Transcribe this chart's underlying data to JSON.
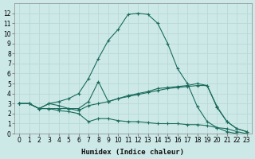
{
  "xlabel": "Humidex (Indice chaleur)",
  "xlim": [
    -0.5,
    23.5
  ],
  "ylim": [
    0,
    13
  ],
  "xticks": [
    0,
    1,
    2,
    3,
    4,
    5,
    6,
    7,
    8,
    9,
    10,
    11,
    12,
    13,
    14,
    15,
    16,
    17,
    18,
    19,
    20,
    21,
    22,
    23
  ],
  "yticks": [
    0,
    1,
    2,
    3,
    4,
    5,
    6,
    7,
    8,
    9,
    10,
    11,
    12
  ],
  "bg_color": "#cce9e8",
  "line_color": "#1a6b5a",
  "grid_color": "#b8d8d6",
  "lines": [
    {
      "x": [
        0,
        1,
        2,
        3,
        4,
        5,
        6,
        7,
        8,
        9,
        10,
        11,
        12,
        13,
        14,
        15,
        16,
        17,
        18,
        19,
        20,
        21,
        22,
        23
      ],
      "y": [
        3.0,
        3.0,
        2.5,
        3.0,
        3.2,
        3.5,
        4.0,
        5.5,
        7.5,
        9.3,
        10.4,
        11.9,
        12.0,
        11.9,
        11.0,
        9.0,
        6.5,
        5.0,
        2.7,
        1.2,
        0.6,
        0.2,
        0.0,
        null
      ]
    },
    {
      "x": [
        0,
        1,
        2,
        3,
        4,
        5,
        6,
        7,
        8,
        9,
        10,
        11,
        12,
        13,
        14,
        15,
        16,
        17,
        18,
        19,
        20,
        21,
        22,
        23
      ],
      "y": [
        3.0,
        3.0,
        2.5,
        3.0,
        2.8,
        2.5,
        2.5,
        3.2,
        5.2,
        3.2,
        3.5,
        3.8,
        4.0,
        4.2,
        4.5,
        4.6,
        4.7,
        4.8,
        5.0,
        4.8,
        2.6,
        1.2,
        0.5,
        0.2
      ]
    },
    {
      "x": [
        0,
        1,
        2,
        3,
        4,
        5,
        6,
        7,
        8,
        9,
        10,
        11,
        12,
        13,
        14,
        15,
        16,
        17,
        18,
        19,
        20,
        21,
        22,
        23
      ],
      "y": [
        3.0,
        3.0,
        2.5,
        2.5,
        2.5,
        2.5,
        2.3,
        2.8,
        3.0,
        3.2,
        3.5,
        3.7,
        3.9,
        4.1,
        4.3,
        4.5,
        4.6,
        4.7,
        4.8,
        4.8,
        2.7,
        1.2,
        0.5,
        0.2
      ]
    },
    {
      "x": [
        0,
        1,
        2,
        3,
        4,
        5,
        6,
        7,
        8,
        9,
        10,
        11,
        12,
        13,
        14,
        15,
        16,
        17,
        18,
        19,
        20,
        21,
        22,
        23
      ],
      "y": [
        3.0,
        3.0,
        2.5,
        2.5,
        2.3,
        2.2,
        2.0,
        1.2,
        1.5,
        1.5,
        1.3,
        1.2,
        1.2,
        1.1,
        1.0,
        1.0,
        1.0,
        0.9,
        0.9,
        0.8,
        0.6,
        0.5,
        0.2,
        0.0
      ]
    }
  ]
}
